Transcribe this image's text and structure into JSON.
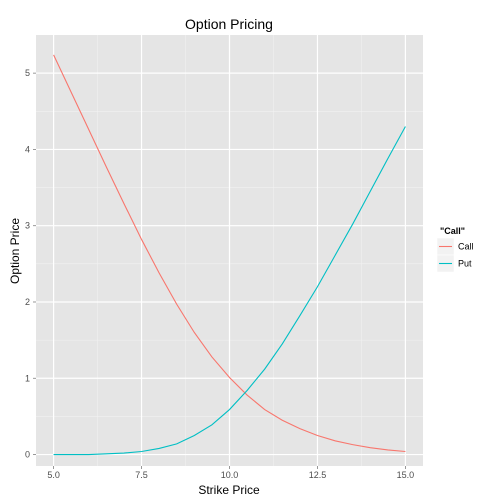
{
  "chart_data": {
    "type": "line",
    "title": "Option Pricing",
    "xlabel": "Strike Price",
    "ylabel": "Option Price",
    "xlim": [
      4.5,
      15.5
    ],
    "ylim": [
      -0.15,
      5.5
    ],
    "x_ticks": [
      5.0,
      7.5,
      10.0,
      12.5,
      15.0
    ],
    "x_tick_labels": [
      "5.0",
      "7.5",
      "10.0",
      "12.5",
      "15.0"
    ],
    "y_ticks": [
      0,
      1,
      2,
      3,
      4,
      5
    ],
    "y_tick_labels": [
      "0",
      "1",
      "2",
      "3",
      "4",
      "5"
    ],
    "grid": true,
    "legend": {
      "title": "\"Call\"",
      "position": "right"
    },
    "x": [
      5.0,
      5.5,
      6.0,
      6.5,
      7.0,
      7.5,
      8.0,
      8.5,
      9.0,
      9.5,
      10.0,
      10.5,
      11.0,
      11.5,
      12.0,
      12.5,
      13.0,
      13.5,
      14.0,
      14.5,
      15.0
    ],
    "series": [
      {
        "name": "Call",
        "color": "#F8766D",
        "values": [
          5.24,
          4.75,
          4.26,
          3.77,
          3.29,
          2.82,
          2.38,
          1.97,
          1.6,
          1.28,
          1.01,
          0.78,
          0.59,
          0.45,
          0.34,
          0.25,
          0.18,
          0.13,
          0.09,
          0.06,
          0.04
        ]
      },
      {
        "name": "Put",
        "color": "#00BFC4",
        "values": [
          0.0,
          0.0,
          0.0,
          0.01,
          0.02,
          0.04,
          0.08,
          0.14,
          0.25,
          0.39,
          0.59,
          0.84,
          1.12,
          1.45,
          1.82,
          2.2,
          2.61,
          3.02,
          3.45,
          3.88,
          4.3
        ]
      }
    ]
  }
}
